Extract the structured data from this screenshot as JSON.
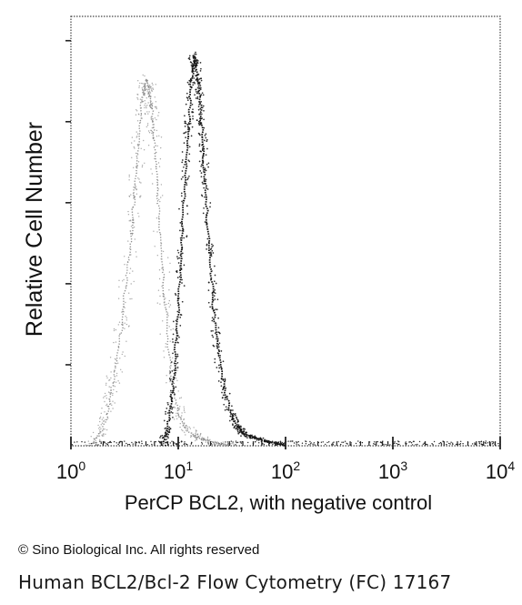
{
  "chart_data": {
    "type": "area",
    "xlabel": "PerCP BCL2, with negative control",
    "ylabel": "Relative Cell Number",
    "x_scale": "log",
    "xlim": [
      1,
      10000
    ],
    "ylim": [
      0,
      1
    ],
    "x_ticks": [
      {
        "base": "10",
        "exp": "0",
        "value": 1
      },
      {
        "base": "10",
        "exp": "1",
        "value": 10
      },
      {
        "base": "10",
        "exp": "2",
        "value": 100
      },
      {
        "base": "10",
        "exp": "3",
        "value": 1000
      },
      {
        "base": "10",
        "exp": "4",
        "value": 10000
      }
    ],
    "grid": false,
    "series": [
      {
        "style": "light-gray-dotted",
        "color": "#8c8c8c",
        "x": [
          1.5,
          2.0,
          2.3,
          2.6,
          3.0,
          3.4,
          3.8,
          4.2,
          4.6,
          5.0,
          5.4,
          5.8,
          6.2,
          6.8,
          7.5,
          8.5,
          10,
          12,
          15,
          20,
          30
        ],
        "y": [
          0.0,
          0.04,
          0.1,
          0.19,
          0.3,
          0.44,
          0.57,
          0.72,
          0.84,
          0.89,
          0.86,
          0.8,
          0.69,
          0.52,
          0.35,
          0.18,
          0.08,
          0.04,
          0.02,
          0.01,
          0.0
        ]
      },
      {
        "style": "dark-dotted",
        "color": "#151515",
        "x": [
          7,
          8,
          9,
          10,
          11,
          12,
          13,
          14,
          15,
          16,
          17,
          18,
          20,
          22,
          25,
          30,
          35,
          40,
          50,
          70,
          100
        ],
        "y": [
          0.0,
          0.05,
          0.15,
          0.32,
          0.53,
          0.72,
          0.86,
          0.95,
          0.92,
          0.84,
          0.73,
          0.62,
          0.44,
          0.3,
          0.18,
          0.09,
          0.05,
          0.03,
          0.02,
          0.01,
          0.0
        ]
      }
    ]
  },
  "footer": {
    "copyright": "© Sino Biological Inc. All rights reserved",
    "caption": "Human BCL2/Bcl-2 Flow Cytometry (FC) 17167"
  }
}
